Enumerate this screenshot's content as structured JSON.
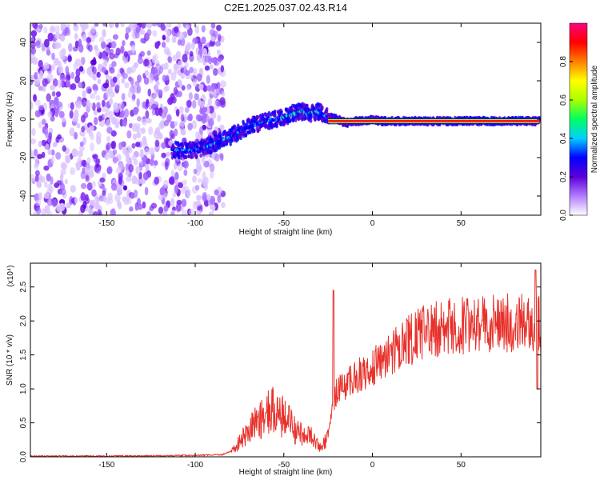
{
  "title": "C2E1.2025.037.02.43.R14",
  "chart_data": [
    {
      "type": "heatmap",
      "xlabel": "Height of straight line (km)",
      "ylabel": "Frequency (Hz)",
      "xlim": [
        -193,
        95
      ],
      "ylim": [
        -50,
        50
      ],
      "x_ticks": [
        -150,
        -100,
        -50,
        0,
        50
      ],
      "y_ticks": [
        -40,
        -20,
        0,
        20,
        40
      ],
      "colorbar": {
        "label": "Normalized spectral amplitude",
        "range": [
          0,
          1
        ],
        "ticks": [
          "0.0",
          "0.2",
          "0.4",
          "0.6",
          "0.8"
        ],
        "colors": [
          "#ffffff",
          "#b27cff",
          "#5a00d8",
          "#0000ff",
          "#00d0ff",
          "#00ff60",
          "#aaff00",
          "#ffff00",
          "#ff8000",
          "#ff0000",
          "#ff0080"
        ]
      },
      "ridge": {
        "x": [
          -112,
          -100,
          -90,
          -80,
          -70,
          -60,
          -50,
          -45,
          -40,
          -35,
          -30,
          -25,
          -20,
          -15,
          -10,
          -5,
          0,
          5,
          10,
          50,
          92
        ],
        "y": [
          -16,
          -16,
          -13,
          -9,
          -4,
          -1,
          1,
          3,
          4,
          3,
          4,
          1,
          0,
          -2,
          -1,
          -1,
          0,
          -1,
          -1,
          -1,
          -1
        ]
      }
    },
    {
      "type": "line",
      "xlabel": "Height of straight line (km)",
      "ylabel": "SNR (10 * v/v)",
      "multiplier": "(x10⁴)",
      "xlim": [
        -193,
        95
      ],
      "ylim": [
        0,
        2.85
      ],
      "x_ticks": [
        -150,
        -100,
        -50,
        0,
        50
      ],
      "y_ticks": [
        "0.0",
        "0.5",
        "1.0",
        "1.5",
        "2.0",
        "2.5"
      ],
      "color": "#e8302a",
      "series": [
        {
          "x": [
            -193,
            -150,
            -100,
            -85,
            -80,
            -75,
            -70,
            -65,
            -60,
            -55,
            -50,
            -45,
            -40,
            -35,
            -30,
            -25,
            -23,
            -20,
            -15,
            -10,
            -5,
            0,
            5,
            10,
            15,
            20,
            25,
            30,
            35,
            40,
            45,
            50,
            55,
            60,
            65,
            70,
            75,
            80,
            85,
            90,
            95
          ],
          "y": [
            0.01,
            0.01,
            0.02,
            0.03,
            0.08,
            0.22,
            0.38,
            0.52,
            0.62,
            0.72,
            0.6,
            0.42,
            0.35,
            0.3,
            0.15,
            0.3,
            0.6,
            1.0,
            1.08,
            1.15,
            1.25,
            1.32,
            1.42,
            1.5,
            1.6,
            1.7,
            1.78,
            1.85,
            1.88,
            1.9,
            1.92,
            1.93,
            1.95,
            1.95,
            1.95,
            1.96,
            1.97,
            1.98,
            1.98,
            1.97,
            1.95
          ]
        }
      ]
    }
  ]
}
